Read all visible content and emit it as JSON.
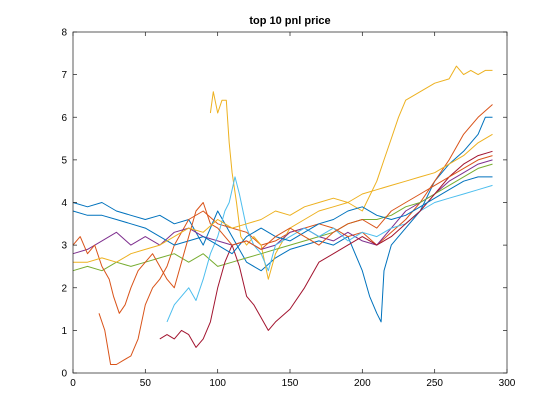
{
  "chart_data": {
    "type": "line",
    "title": "top 10 pnl price",
    "xlabel": "",
    "ylabel": "",
    "xlim": [
      0,
      300
    ],
    "ylim": [
      0,
      8
    ],
    "xticks": [
      0,
      50,
      100,
      150,
      200,
      250,
      300
    ],
    "yticks": [
      0,
      1,
      2,
      3,
      4,
      5,
      6,
      7,
      8
    ],
    "grid": false,
    "legend": "none",
    "series": [
      {
        "color": "#0072BD",
        "x": [
          0,
          10,
          20,
          30,
          40,
          50,
          60,
          70,
          80,
          90,
          100,
          110,
          120,
          130,
          140,
          150,
          160,
          170,
          180,
          190,
          200,
          205,
          210,
          213,
          215,
          220,
          230,
          240,
          250,
          260,
          270,
          280,
          285,
          290
        ],
        "y": [
          4.0,
          3.9,
          4.0,
          3.8,
          3.7,
          3.6,
          3.7,
          3.5,
          3.6,
          3.0,
          3.8,
          3.2,
          2.6,
          2.4,
          2.7,
          2.9,
          3.0,
          3.1,
          3.0,
          3.2,
          2.4,
          1.8,
          1.4,
          1.2,
          2.4,
          3.0,
          3.4,
          3.8,
          4.5,
          4.9,
          5.2,
          5.6,
          6.0,
          6.0
        ]
      },
      {
        "color": "#D95319",
        "x": [
          18,
          22,
          26,
          30,
          35,
          40,
          45,
          50,
          55,
          60,
          65,
          70,
          80,
          90,
          100,
          110,
          120,
          130,
          140,
          150,
          160,
          170,
          180,
          190,
          200,
          210,
          220,
          230,
          240,
          250,
          260,
          270,
          280,
          290
        ],
        "y": [
          1.4,
          1.0,
          0.2,
          0.2,
          0.3,
          0.4,
          0.8,
          1.6,
          2.0,
          2.2,
          2.5,
          3.0,
          3.6,
          3.8,
          3.5,
          3.4,
          3.3,
          3.0,
          3.1,
          3.3,
          3.4,
          3.5,
          3.4,
          3.2,
          3.3,
          3.0,
          3.3,
          3.6,
          4.0,
          4.5,
          5.0,
          5.6,
          6.0,
          6.3
        ]
      },
      {
        "color": "#EDB120",
        "x": [
          95,
          97,
          100,
          103,
          106,
          108,
          110,
          113,
          116,
          120,
          125,
          130,
          135,
          140,
          150,
          160,
          170,
          180,
          190,
          200,
          210,
          215,
          220,
          225,
          230,
          240,
          250,
          260,
          265,
          270,
          275,
          280,
          285,
          290
        ],
        "y": [
          6.1,
          6.6,
          6.1,
          6.4,
          6.4,
          5.4,
          4.7,
          4.0,
          3.2,
          3.0,
          3.2,
          3.0,
          2.2,
          2.8,
          3.4,
          3.6,
          3.8,
          3.9,
          4.0,
          3.8,
          4.5,
          5.0,
          5.5,
          6.0,
          6.4,
          6.6,
          6.8,
          6.9,
          7.2,
          7.0,
          7.1,
          7.0,
          7.1,
          7.1
        ]
      },
      {
        "color": "#7E2F8E",
        "x": [
          0,
          10,
          20,
          30,
          40,
          50,
          60,
          70,
          80,
          90,
          100,
          110,
          120,
          130,
          140,
          150,
          160,
          170,
          180,
          190,
          200,
          210,
          220,
          230,
          240,
          250,
          260,
          270,
          280,
          290
        ],
        "y": [
          2.8,
          2.9,
          3.1,
          3.3,
          3.0,
          3.2,
          3.0,
          3.3,
          3.4,
          3.2,
          3.1,
          3.0,
          3.1,
          2.9,
          3.0,
          3.3,
          3.4,
          3.2,
          3.1,
          3.3,
          3.1,
          3.0,
          3.4,
          3.8,
          4.0,
          4.2,
          4.5,
          4.7,
          4.9,
          5.0
        ]
      },
      {
        "color": "#77AC30",
        "x": [
          0,
          10,
          20,
          30,
          40,
          50,
          60,
          70,
          80,
          90,
          100,
          110,
          120,
          130,
          140,
          150,
          160,
          170,
          180,
          190,
          200,
          210,
          220,
          230,
          240,
          250,
          260,
          270,
          280,
          290
        ],
        "y": [
          2.4,
          2.5,
          2.4,
          2.6,
          2.5,
          2.6,
          2.7,
          2.8,
          2.6,
          2.8,
          2.5,
          2.6,
          2.7,
          2.8,
          2.9,
          3.0,
          3.1,
          3.2,
          3.3,
          3.5,
          3.6,
          3.6,
          3.7,
          3.9,
          4.0,
          4.2,
          4.4,
          4.6,
          4.8,
          4.9
        ]
      },
      {
        "color": "#4DBEEE",
        "x": [
          65,
          70,
          75,
          80,
          85,
          90,
          95,
          100,
          105,
          108,
          112,
          115,
          120,
          125,
          130,
          135,
          140,
          150,
          160,
          170,
          180,
          190,
          200,
          210,
          220,
          230,
          240,
          250,
          260,
          270,
          280,
          290
        ],
        "y": [
          1.2,
          1.6,
          1.8,
          2.0,
          1.7,
          2.2,
          2.8,
          3.2,
          3.8,
          4.0,
          4.6,
          4.2,
          3.4,
          3.0,
          2.8,
          2.4,
          3.0,
          3.2,
          3.4,
          3.2,
          3.4,
          3.1,
          3.3,
          3.2,
          3.4,
          3.5,
          3.8,
          4.0,
          4.1,
          4.2,
          4.3,
          4.4
        ]
      },
      {
        "color": "#A2142F",
        "x": [
          60,
          65,
          70,
          75,
          80,
          85,
          90,
          95,
          100,
          105,
          110,
          115,
          120,
          125,
          130,
          135,
          140,
          150,
          160,
          170,
          180,
          190,
          200,
          210,
          220,
          230,
          240,
          250,
          260,
          270,
          280,
          290
        ],
        "y": [
          0.8,
          0.9,
          0.8,
          1.0,
          0.9,
          0.6,
          0.8,
          1.2,
          2.0,
          2.6,
          3.0,
          2.5,
          1.8,
          1.6,
          1.3,
          1.0,
          1.2,
          1.5,
          2.0,
          2.6,
          2.8,
          3.0,
          3.2,
          3.0,
          3.2,
          3.5,
          3.8,
          4.2,
          4.6,
          4.9,
          5.1,
          5.2
        ]
      },
      {
        "color": "#0072BD",
        "x": [
          0,
          10,
          20,
          30,
          40,
          50,
          60,
          70,
          80,
          90,
          100,
          110,
          120,
          130,
          140,
          150,
          160,
          170,
          180,
          190,
          200,
          210,
          220,
          230,
          240,
          250,
          260,
          270,
          280,
          290
        ],
        "y": [
          3.8,
          3.7,
          3.7,
          3.6,
          3.5,
          3.4,
          3.2,
          3.0,
          3.1,
          3.2,
          3.0,
          2.8,
          3.2,
          3.4,
          3.2,
          3.1,
          3.3,
          3.5,
          3.6,
          3.8,
          3.9,
          3.7,
          3.6,
          3.7,
          3.9,
          4.1,
          4.3,
          4.5,
          4.6,
          4.6
        ]
      },
      {
        "color": "#D95319",
        "x": [
          0,
          5,
          10,
          15,
          20,
          25,
          28,
          32,
          36,
          40,
          45,
          50,
          55,
          60,
          65,
          70,
          75,
          80,
          85,
          90,
          95,
          100,
          110,
          120,
          130,
          140,
          150,
          160,
          170,
          180,
          190,
          200,
          210,
          220,
          230,
          240,
          250,
          260,
          270,
          280,
          290
        ],
        "y": [
          3.0,
          3.2,
          2.8,
          3.0,
          2.5,
          2.2,
          1.8,
          1.4,
          1.6,
          2.0,
          2.4,
          2.6,
          2.8,
          2.5,
          2.2,
          2.0,
          2.6,
          3.2,
          3.8,
          4.0,
          3.5,
          3.4,
          3.0,
          3.1,
          2.9,
          3.2,
          3.4,
          3.2,
          3.0,
          3.3,
          3.5,
          3.6,
          3.4,
          3.8,
          4.0,
          4.2,
          4.4,
          4.6,
          4.8,
          5.0,
          5.1
        ]
      },
      {
        "color": "#EDB120",
        "x": [
          0,
          10,
          20,
          30,
          40,
          50,
          60,
          70,
          80,
          90,
          100,
          110,
          120,
          130,
          140,
          150,
          160,
          170,
          180,
          190,
          200,
          210,
          220,
          230,
          240,
          250,
          260,
          270,
          280,
          290
        ],
        "y": [
          2.6,
          2.6,
          2.7,
          2.6,
          2.8,
          2.9,
          3.0,
          3.2,
          3.4,
          3.3,
          3.6,
          3.4,
          3.5,
          3.6,
          3.8,
          3.7,
          3.9,
          4.0,
          4.1,
          4.0,
          4.2,
          4.3,
          4.4,
          4.5,
          4.6,
          4.7,
          4.9,
          5.1,
          5.4,
          5.6
        ]
      }
    ]
  }
}
